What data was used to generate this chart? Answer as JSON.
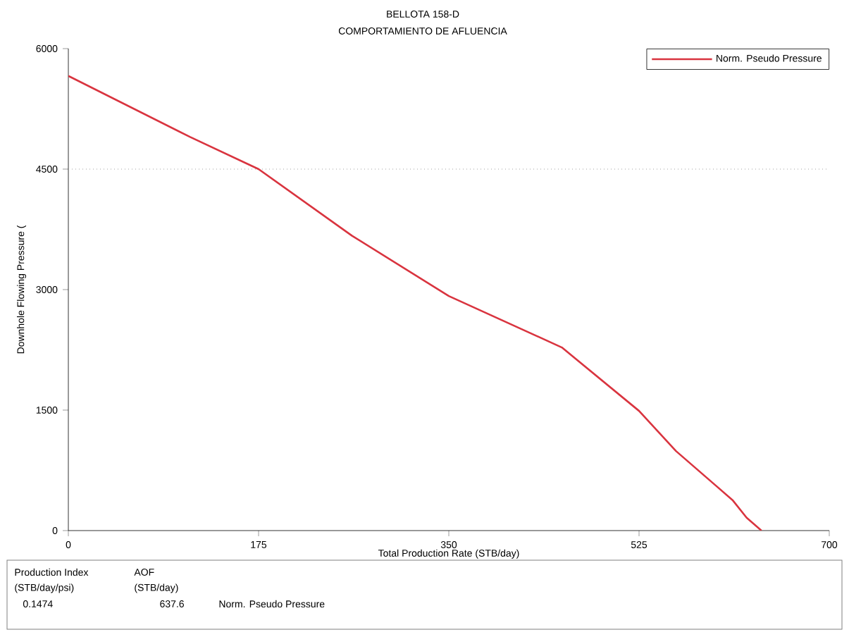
{
  "chart_data": {
    "type": "line",
    "title": "BELLOTA 158-D",
    "subtitle": "COMPORTAMIENTO DE AFLUENCIA",
    "xlabel": "Total Production Rate (STB/day)",
    "ylabel": "Downhole Flowing Pressure (",
    "x": [
      0,
      112,
      175,
      261,
      350,
      454,
      525,
      559,
      611,
      624,
      637.6
    ],
    "series": [
      {
        "name": "Norm. Pseudo Pressure",
        "color": "#d9343f",
        "values": [
          5660,
          4900,
          4500,
          3670,
          2920,
          2280,
          1490,
          990,
          380,
          160,
          0
        ]
      }
    ],
    "xlim": [
      0,
      700
    ],
    "xticks": [
      0,
      175,
      350,
      525,
      700
    ],
    "ylim": [
      0,
      6000
    ],
    "yticks": [
      0,
      1500,
      3000,
      4500,
      6000
    ],
    "ref_lines": [
      {
        "axis": "y",
        "value": 4500,
        "color": "#a0a0a0",
        "line_style": "dotted"
      }
    ],
    "legend": "top right",
    "marker": "none",
    "line_style": "solid",
    "grid": false,
    "annotations": [
      "Production Index",
      "(STB/day/psi)",
      "0.1474",
      "AOF",
      "(STB/day)",
      "637.6",
      "Norm. Pseudo Pressure"
    ]
  }
}
